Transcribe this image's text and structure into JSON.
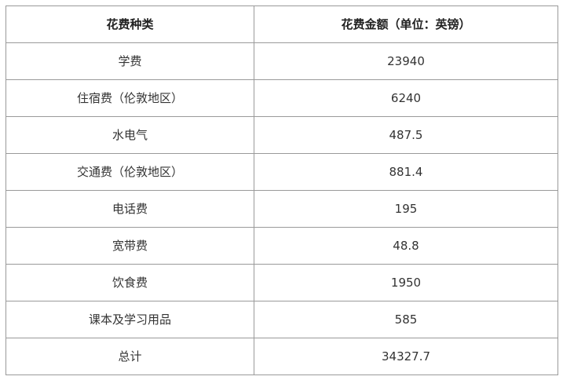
{
  "table": {
    "headers": [
      "花费种类",
      "花费金额（单位：英镑）"
    ],
    "rows": [
      {
        "category": "学费",
        "amount": "23940"
      },
      {
        "category": "住宿费（伦敦地区）",
        "amount": "6240"
      },
      {
        "category": "水电气",
        "amount": "487.5"
      },
      {
        "category": "交通费（伦敦地区）",
        "amount": "881.4"
      },
      {
        "category": "电话费",
        "amount": "195"
      },
      {
        "category": "宽带费",
        "amount": "48.8"
      },
      {
        "category": "饮食费",
        "amount": "1950"
      },
      {
        "category": "课本及学习用品",
        "amount": "585"
      },
      {
        "category": "总计",
        "amount": "34327.7"
      }
    ]
  }
}
